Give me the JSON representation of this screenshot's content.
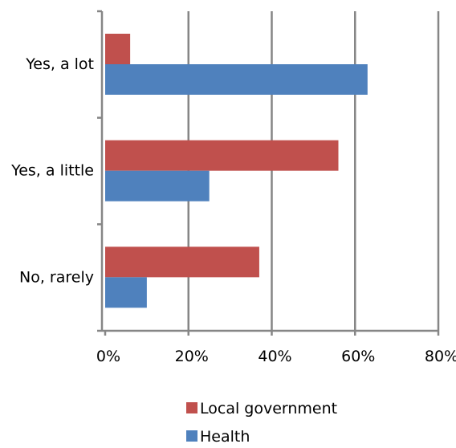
{
  "chart_data": {
    "type": "bar",
    "orientation": "horizontal",
    "categories": [
      "Yes, a lot",
      "Yes, a little",
      "No, rarely"
    ],
    "series": [
      {
        "name": "Local government",
        "color": "#c0504d",
        "values": [
          6,
          56,
          37
        ]
      },
      {
        "name": "Health",
        "color": "#4f81bd",
        "values": [
          63,
          25,
          10
        ]
      }
    ],
    "xlim": [
      0,
      80
    ],
    "x_ticks": [
      0,
      20,
      40,
      60,
      80
    ],
    "x_tick_labels": [
      "0%",
      "20%",
      "40%",
      "60%",
      "80%"
    ],
    "grid": "vertical",
    "legend_position": "bottom"
  }
}
